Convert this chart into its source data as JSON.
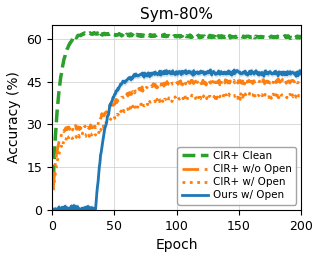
{
  "title": "Sym-80%",
  "xlabel": "Epoch",
  "ylabel": "Accuracy (%)",
  "xlim": [
    0,
    200
  ],
  "ylim": [
    0,
    65
  ],
  "yticks": [
    0,
    15,
    30,
    45,
    60
  ],
  "xticks": [
    0,
    50,
    100,
    150,
    200
  ],
  "grid": true,
  "legend": [
    {
      "label": "CIR+ Clean",
      "color": "#2ca02c",
      "linestyle": "dashed",
      "linewidth": 2.5
    },
    {
      "label": "CIR+ w/o Open",
      "color": "#ff7f0e",
      "linestyle": "dashdot",
      "linewidth": 2.0
    },
    {
      "label": "CIR+ w/ Open",
      "color": "#ff7f0e",
      "linestyle": "dotted",
      "linewidth": 2.0
    },
    {
      "label": "Ours w/ Open",
      "color": "#1f77b4",
      "linestyle": "solid",
      "linewidth": 2.0
    }
  ],
  "background_color": "#ffffff"
}
